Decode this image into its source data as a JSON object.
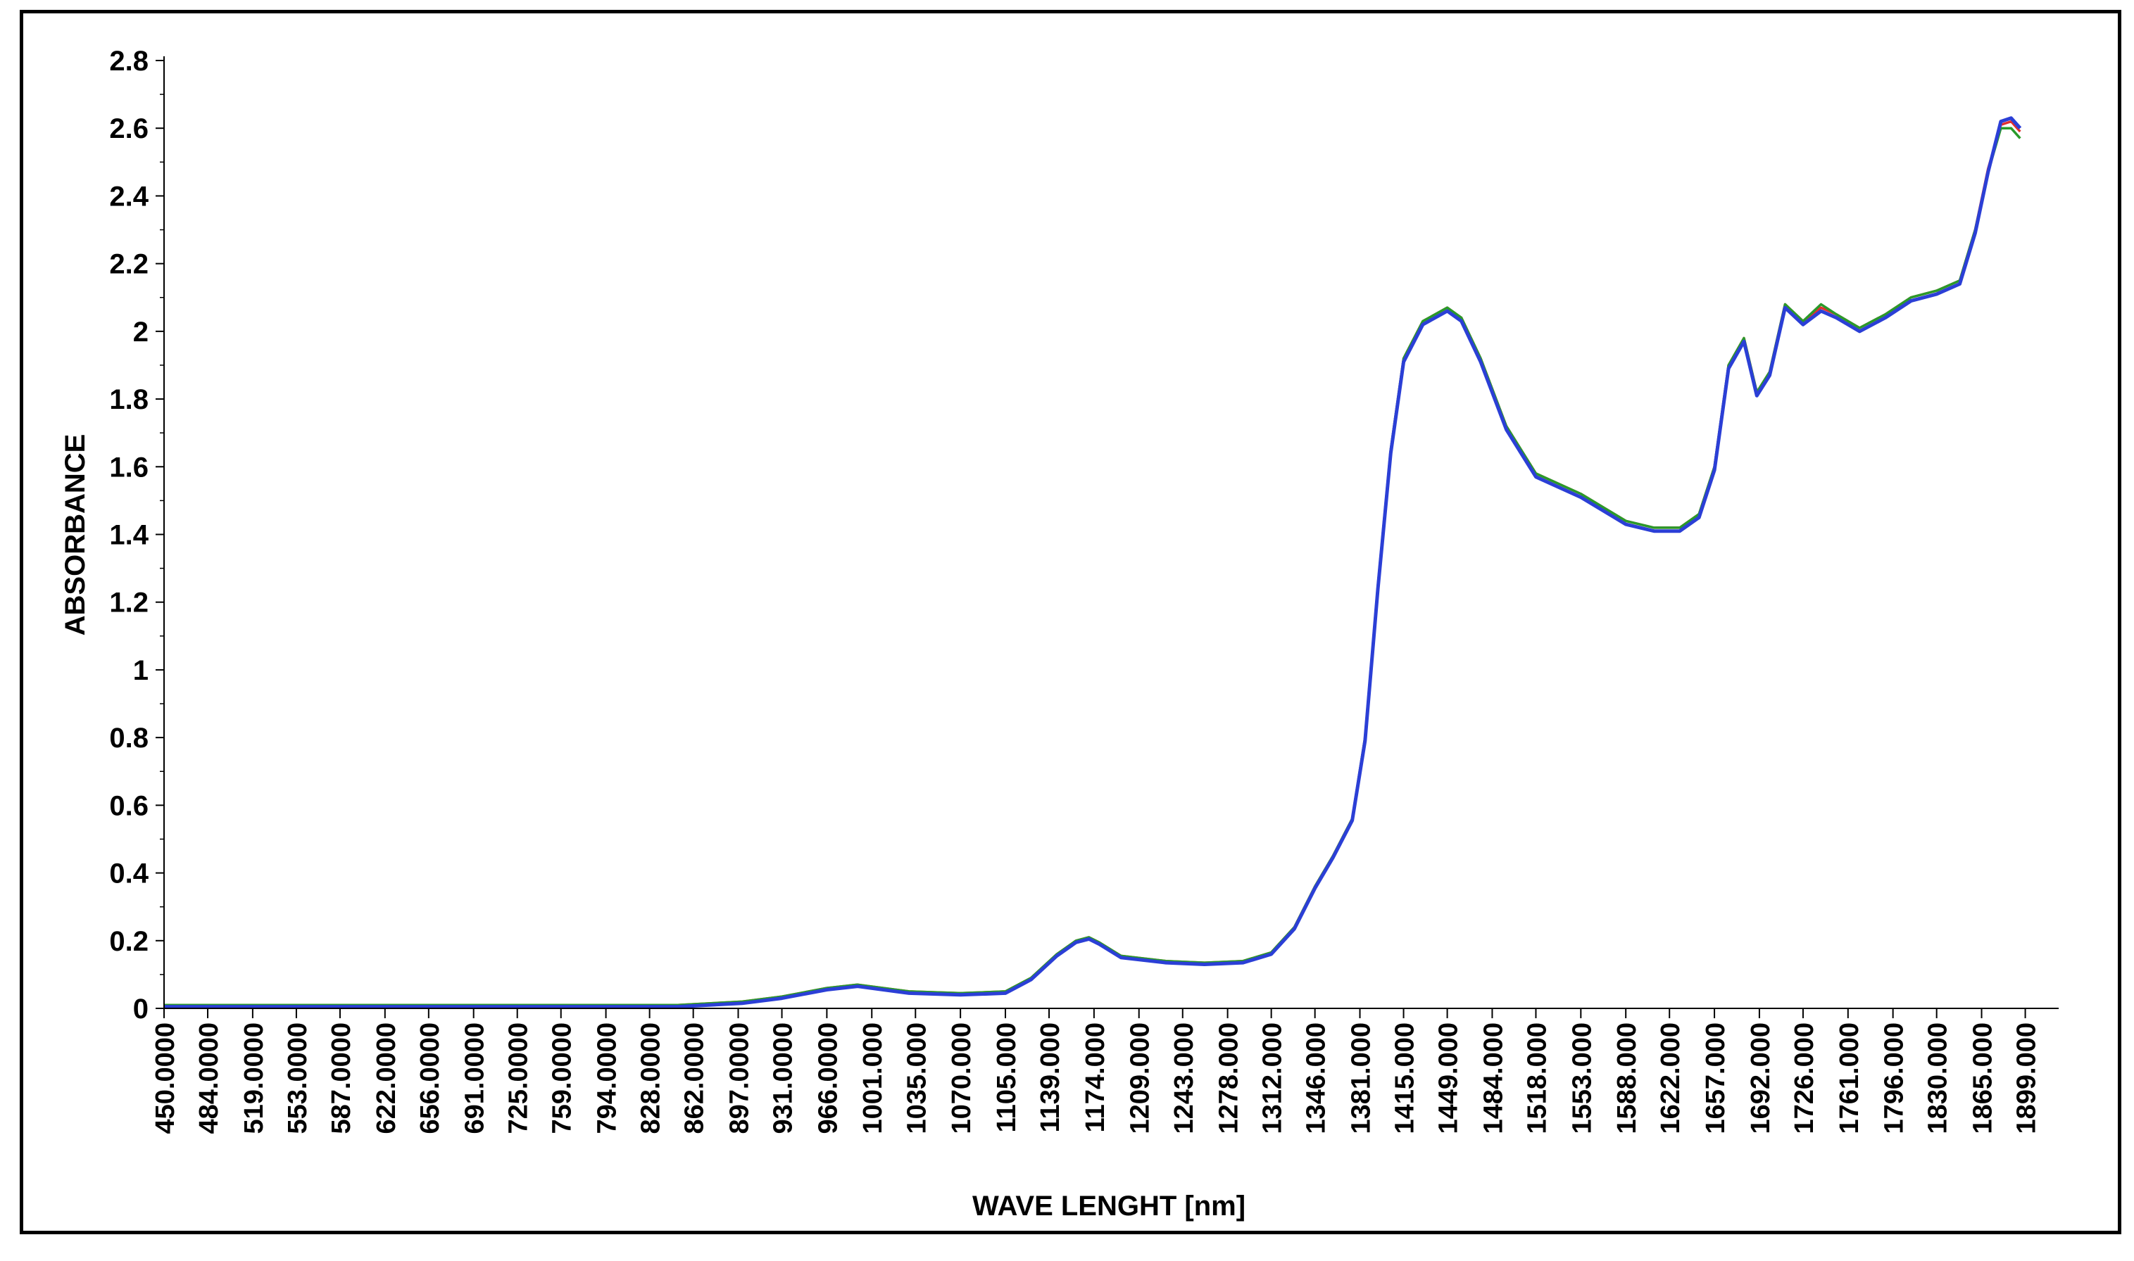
{
  "chart_data": {
    "type": "line",
    "title": "",
    "xlabel": "WAVE LENGHT [nm]",
    "ylabel": "ABSORBANCE",
    "xlim": [
      450,
      1925
    ],
    "ylim": [
      0,
      2.8
    ],
    "grid": false,
    "legend": "none",
    "x_tick_labels": [
      "450.0000",
      "484.0000",
      "519.0000",
      "553.0000",
      "587.0000",
      "622.0000",
      "656.0000",
      "691.0000",
      "725.0000",
      "759.0000",
      "794.0000",
      "828.0000",
      "862.0000",
      "897.0000",
      "931.0000",
      "966.0000",
      "1001.000",
      "1035.000",
      "1070.000",
      "1105.000",
      "1139.000",
      "1174.000",
      "1209.000",
      "1243.000",
      "1278.000",
      "1312.000",
      "1346.000",
      "1381.000",
      "1415.000",
      "1449.000",
      "1484.000",
      "1518.000",
      "1553.000",
      "1588.000",
      "1622.000",
      "1657.000",
      "1692.000",
      "1726.000",
      "1761.000",
      "1796.000",
      "1830.000",
      "1865.000",
      "1899.000"
    ],
    "x_tick_values": [
      450,
      484,
      519,
      553,
      587,
      622,
      656,
      691,
      725,
      759,
      794,
      828,
      862,
      897,
      931,
      966,
      1001,
      1035,
      1070,
      1105,
      1139,
      1174,
      1209,
      1243,
      1278,
      1312,
      1346,
      1381,
      1415,
      1449,
      1484,
      1518,
      1553,
      1588,
      1622,
      1657,
      1692,
      1726,
      1761,
      1796,
      1830,
      1865,
      1899
    ],
    "y_tick_labels": [
      "0",
      "0.2",
      "0.4",
      "0.6",
      "0.8",
      "1",
      "1.2",
      "1.4",
      "1.6",
      "1.8",
      "2",
      "2.2",
      "2.4",
      "2.6",
      "2.8"
    ],
    "y_tick_values": [
      0,
      0.2,
      0.4,
      0.6,
      0.8,
      1.0,
      1.2,
      1.4,
      1.6,
      1.8,
      2.0,
      2.2,
      2.4,
      2.6,
      2.8
    ],
    "series": [
      {
        "color": "#e03030",
        "x": [
          450,
          550,
          650,
          750,
          850,
          900,
          931,
          966,
          990,
          1030,
          1070,
          1105,
          1125,
          1145,
          1160,
          1170,
          1178,
          1195,
          1230,
          1260,
          1290,
          1312,
          1330,
          1346,
          1360,
          1375,
          1385,
          1395,
          1405,
          1415,
          1430,
          1449,
          1460,
          1475,
          1495,
          1518,
          1553,
          1588,
          1610,
          1630,
          1645,
          1657,
          1668,
          1680,
          1690,
          1700,
          1712,
          1726,
          1740,
          1752,
          1770,
          1790,
          1810,
          1830,
          1848,
          1860,
          1870,
          1880,
          1888,
          1895
        ],
        "y": [
          0.01,
          0.01,
          0.01,
          0.01,
          0.01,
          0.02,
          0.035,
          0.06,
          0.07,
          0.05,
          0.045,
          0.05,
          0.09,
          0.16,
          0.2,
          0.21,
          0.195,
          0.155,
          0.14,
          0.135,
          0.14,
          0.165,
          0.24,
          0.36,
          0.45,
          0.56,
          0.8,
          1.25,
          1.65,
          1.92,
          2.03,
          2.07,
          2.04,
          1.92,
          1.72,
          1.58,
          1.52,
          1.44,
          1.42,
          1.42,
          1.46,
          1.6,
          1.9,
          1.98,
          1.82,
          1.88,
          2.08,
          2.03,
          2.07,
          2.05,
          2.01,
          2.05,
          2.1,
          2.12,
          2.15,
          2.3,
          2.48,
          2.61,
          2.62,
          2.59
        ]
      },
      {
        "color": "#2a9a2a",
        "x": [
          450,
          550,
          650,
          750,
          850,
          900,
          931,
          966,
          990,
          1030,
          1070,
          1105,
          1125,
          1145,
          1160,
          1170,
          1178,
          1195,
          1230,
          1260,
          1290,
          1312,
          1330,
          1346,
          1360,
          1375,
          1385,
          1395,
          1405,
          1415,
          1430,
          1449,
          1460,
          1475,
          1495,
          1518,
          1553,
          1588,
          1610,
          1630,
          1645,
          1657,
          1668,
          1680,
          1690,
          1700,
          1712,
          1726,
          1740,
          1752,
          1770,
          1790,
          1810,
          1830,
          1848,
          1860,
          1870,
          1880,
          1888,
          1895
        ],
        "y": [
          0.01,
          0.01,
          0.01,
          0.01,
          0.01,
          0.02,
          0.035,
          0.06,
          0.07,
          0.05,
          0.045,
          0.05,
          0.09,
          0.16,
          0.2,
          0.21,
          0.195,
          0.155,
          0.14,
          0.135,
          0.14,
          0.165,
          0.24,
          0.36,
          0.45,
          0.56,
          0.8,
          1.25,
          1.65,
          1.92,
          2.03,
          2.07,
          2.04,
          1.92,
          1.72,
          1.58,
          1.52,
          1.44,
          1.42,
          1.42,
          1.46,
          1.6,
          1.9,
          1.98,
          1.82,
          1.88,
          2.08,
          2.03,
          2.08,
          2.05,
          2.01,
          2.05,
          2.1,
          2.12,
          2.15,
          2.3,
          2.47,
          2.6,
          2.6,
          2.57
        ]
      },
      {
        "color": "#2b3fd6",
        "x": [
          450,
          550,
          650,
          750,
          850,
          900,
          931,
          966,
          990,
          1030,
          1070,
          1105,
          1125,
          1145,
          1160,
          1170,
          1178,
          1195,
          1230,
          1260,
          1290,
          1312,
          1330,
          1346,
          1360,
          1375,
          1385,
          1395,
          1405,
          1415,
          1430,
          1449,
          1460,
          1475,
          1495,
          1518,
          1553,
          1588,
          1610,
          1630,
          1645,
          1657,
          1668,
          1680,
          1690,
          1700,
          1712,
          1726,
          1740,
          1752,
          1770,
          1790,
          1810,
          1830,
          1848,
          1860,
          1870,
          1880,
          1888,
          1895
        ],
        "y": [
          0.005,
          0.005,
          0.005,
          0.005,
          0.005,
          0.015,
          0.03,
          0.055,
          0.065,
          0.045,
          0.04,
          0.045,
          0.085,
          0.155,
          0.195,
          0.205,
          0.19,
          0.15,
          0.135,
          0.13,
          0.135,
          0.16,
          0.235,
          0.355,
          0.445,
          0.555,
          0.79,
          1.24,
          1.64,
          1.91,
          2.02,
          2.06,
          2.03,
          1.91,
          1.71,
          1.57,
          1.51,
          1.43,
          1.41,
          1.41,
          1.45,
          1.59,
          1.89,
          1.97,
          1.81,
          1.87,
          2.07,
          2.02,
          2.06,
          2.04,
          2.0,
          2.04,
          2.09,
          2.11,
          2.14,
          2.29,
          2.47,
          2.62,
          2.63,
          2.6
        ]
      }
    ]
  }
}
